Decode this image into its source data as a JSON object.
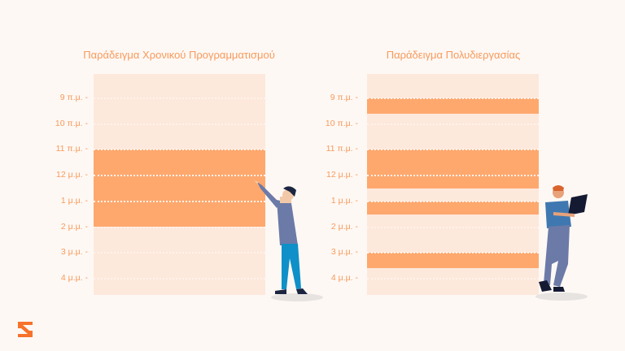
{
  "colors": {
    "background": "#fef8f4",
    "panel": "#fde8dc",
    "block": "#fea86e",
    "text": "#f79a5c",
    "logo": "#f7722a"
  },
  "time_labels": [
    "9 π.μ. -",
    "10 π.μ. -",
    "11 π.μ. -",
    "12 μ.μ. -",
    "1 μ.μ. -",
    "2 μ.μ. -",
    "3 μ.μ. -",
    "4 μ.μ. -"
  ],
  "left": {
    "title": "Παράδειγμα Χρονικού Προγραμματισμού",
    "blocks": [
      {
        "start": 11,
        "end": 14
      }
    ]
  },
  "right": {
    "title": "Παράδειγμα Πολυδιεργασίας",
    "blocks": [
      {
        "start": 9,
        "end": 9.6
      },
      {
        "start": 11,
        "end": 12.5
      },
      {
        "start": 13,
        "end": 13.5
      },
      {
        "start": 15,
        "end": 15.6
      }
    ]
  },
  "logo_icon": "hourglass-logo-icon"
}
